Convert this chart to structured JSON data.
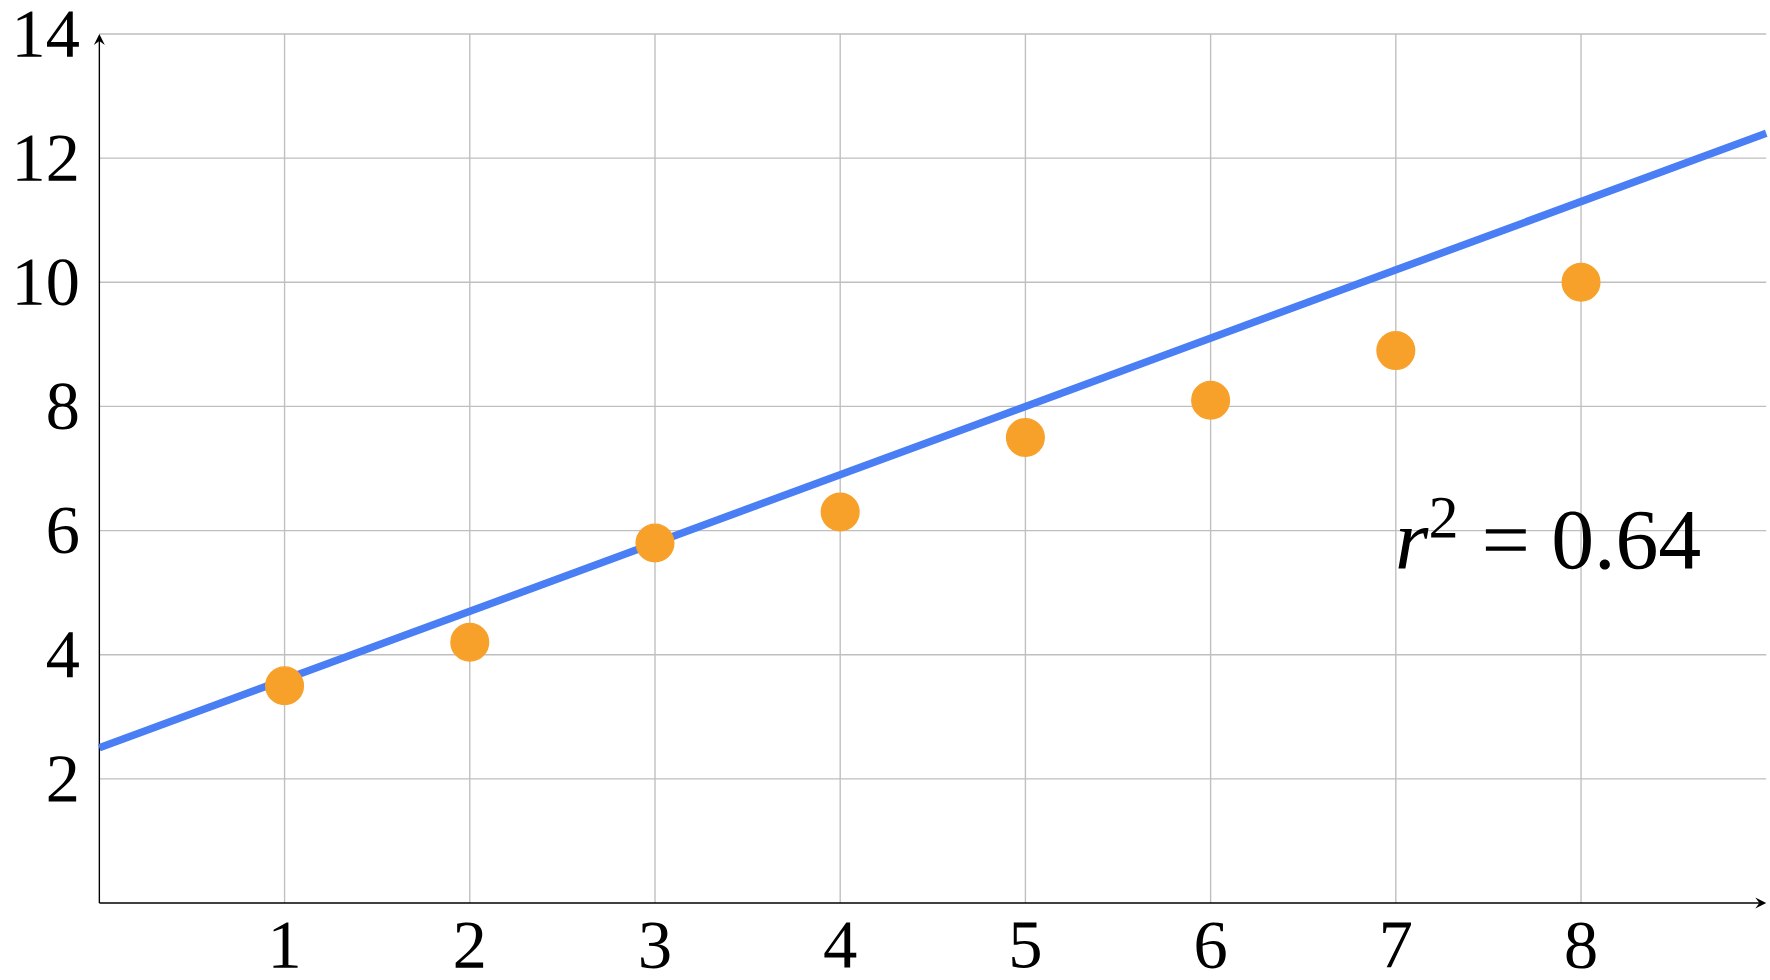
{
  "chart_data": {
    "type": "scatter",
    "x": [
      1,
      2,
      3,
      4,
      5,
      6,
      7,
      8
    ],
    "series": [
      {
        "color": "#f8a12a",
        "marker": "circle",
        "values": [
          3.5,
          4.2,
          5.8,
          6.3,
          7.5,
          8.1,
          8.9,
          10
        ]
      },
      {
        "type": "line",
        "color": "#4a7ef4",
        "x": [
          0,
          9
        ],
        "values": [
          2.5,
          12.4
        ],
        "marker": "none",
        "line_style": "solid"
      }
    ],
    "xlim": [
      0,
      9
    ],
    "ylim": [
      0,
      14
    ],
    "xticks": [
      1,
      2,
      3,
      4,
      5,
      6,
      7,
      8
    ],
    "yticks": [
      2,
      4,
      6,
      8,
      10,
      12,
      14
    ],
    "grid": true,
    "annotations": [
      "*r*$^{2}$ = 0.64"
    ]
  }
}
